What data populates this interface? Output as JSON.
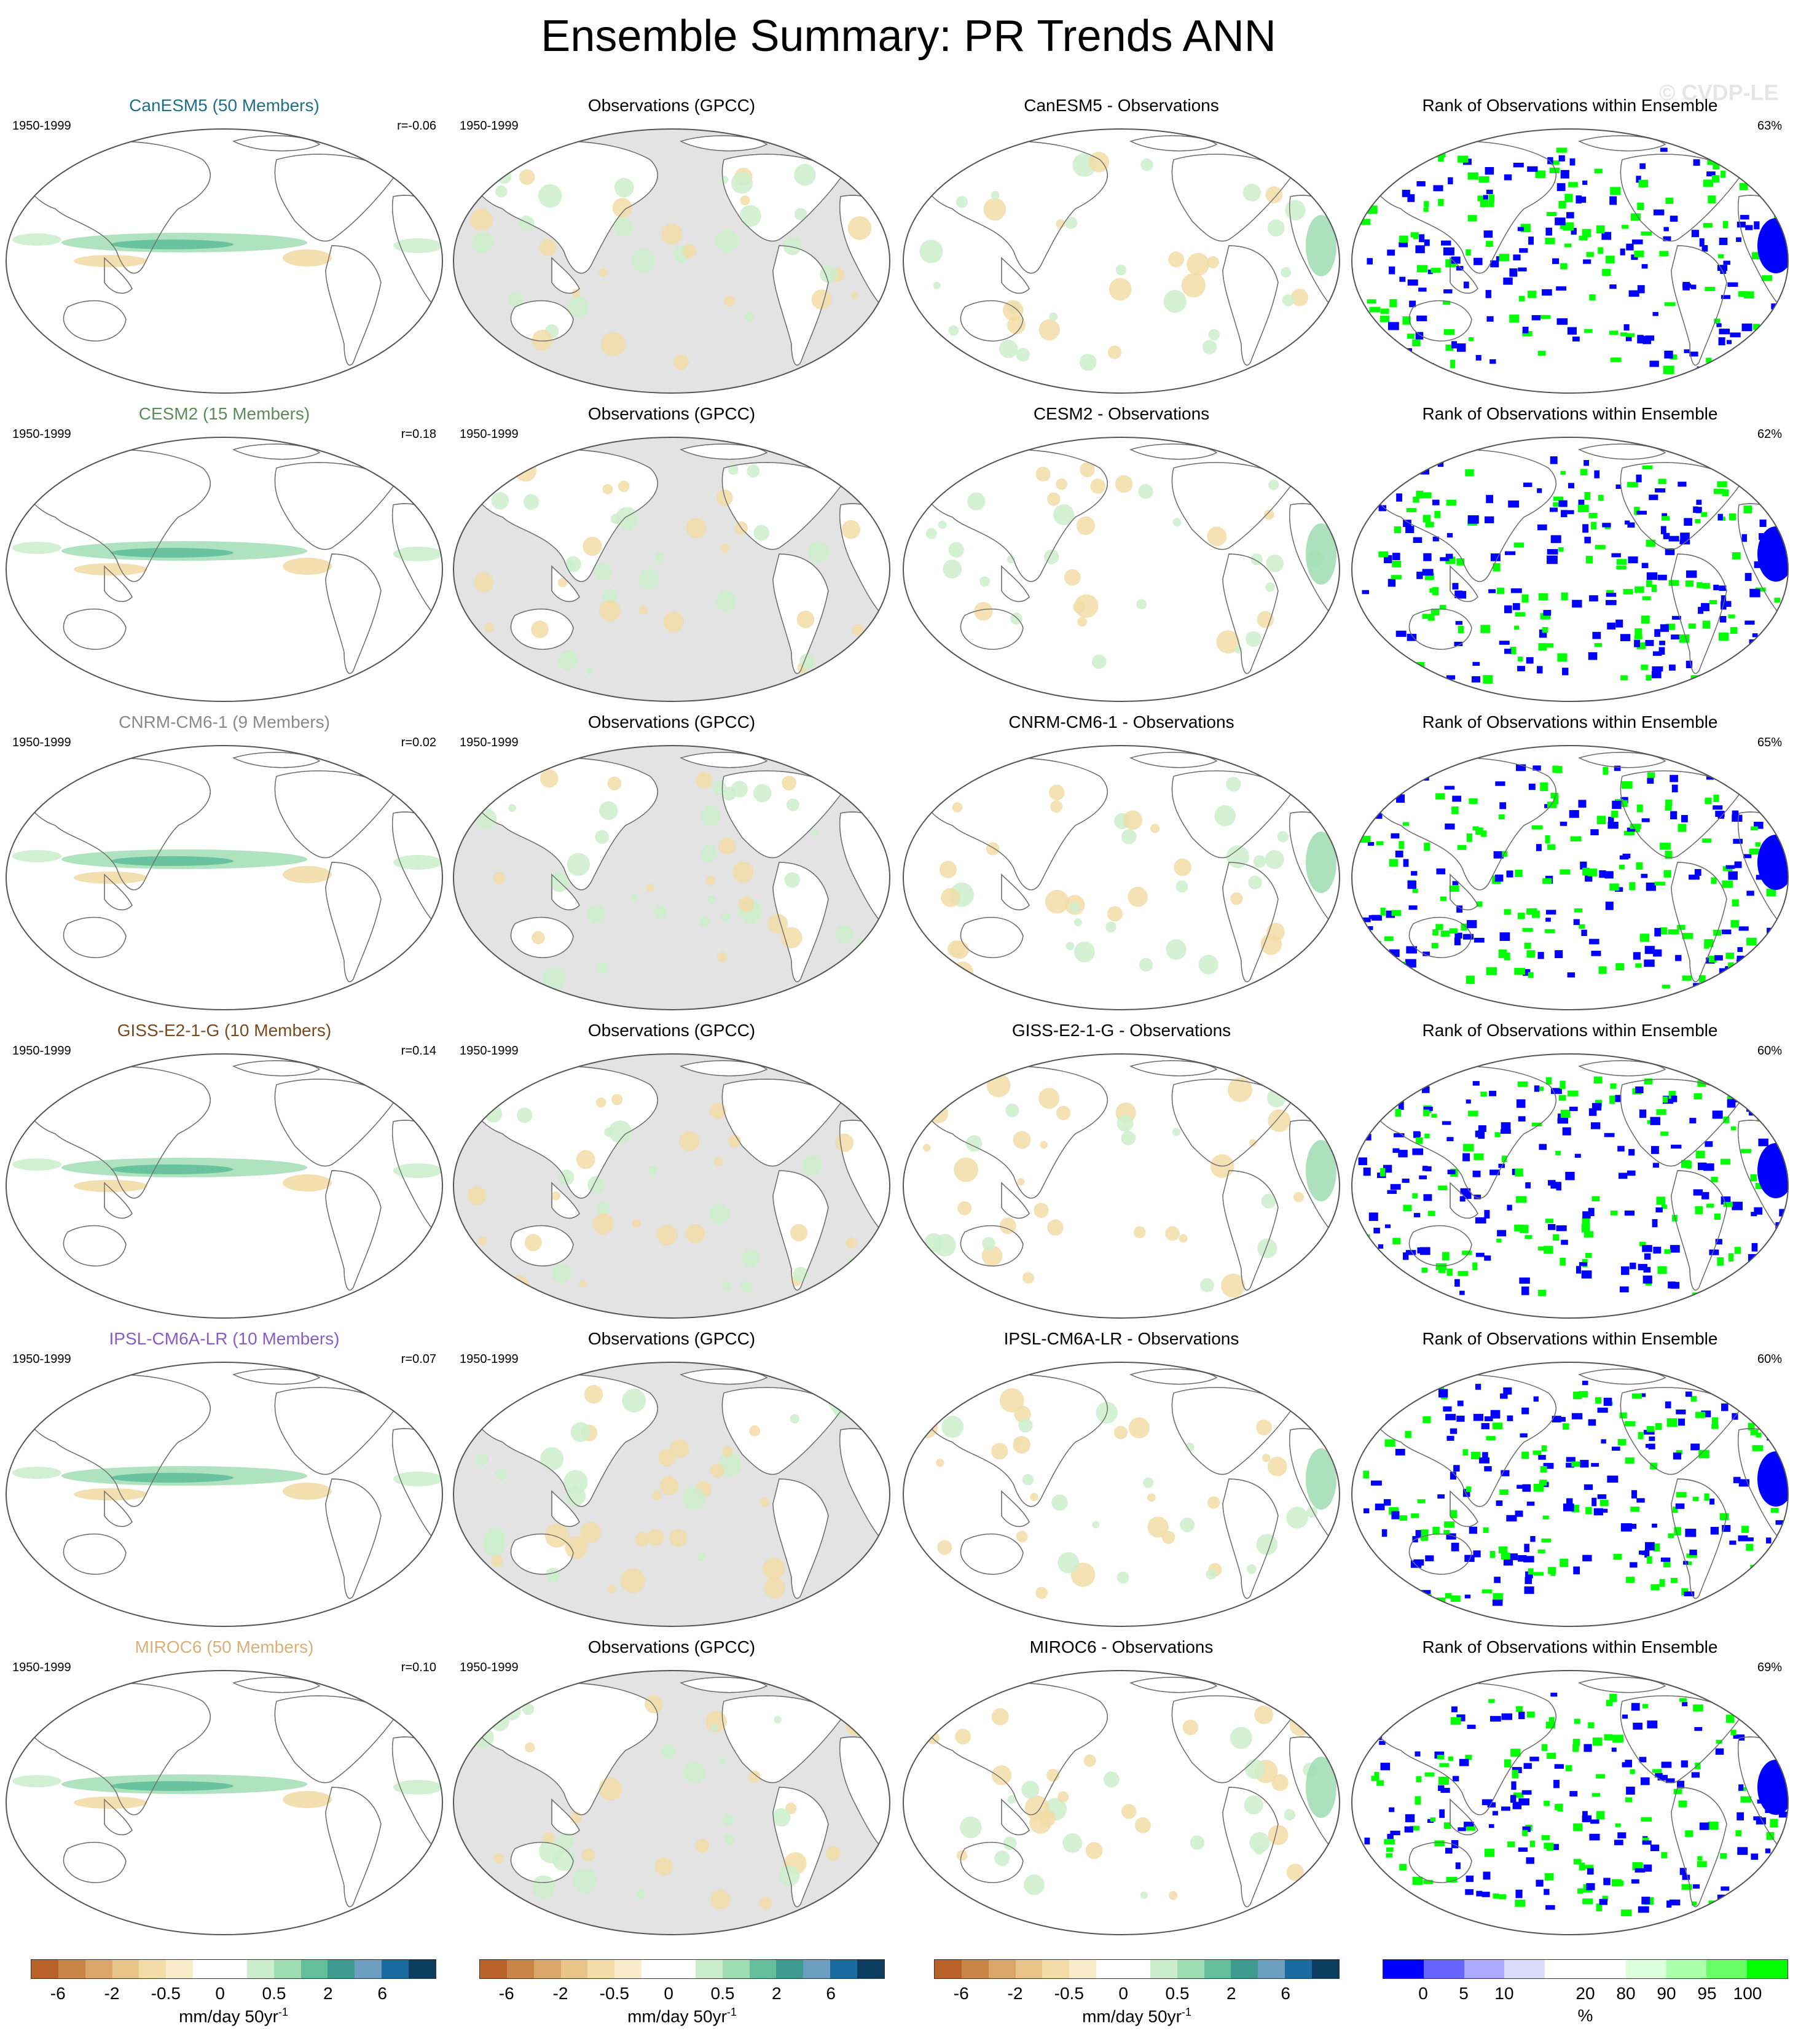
{
  "title": "Ensemble Summary: PR Trends ANN",
  "watermark": "© CVDP-LE",
  "rows": [
    {
      "model_title": "CanESM5 (50 Members)",
      "model_color": "#1f6f8b",
      "period": "1950-1999",
      "r": "r=-0.06",
      "obs_title": "Observations (GPCC)",
      "obs_period": "1950-1999",
      "diff_title": "CanESM5 - Observations",
      "rank_title": "Rank of Observations within Ensemble",
      "rank_pct": "63%"
    },
    {
      "model_title": "CESM2 (15 Members)",
      "model_color": "#5e8a5e",
      "period": "1950-1999",
      "r": "r=0.18",
      "obs_title": "Observations (GPCC)",
      "obs_period": "1950-1999",
      "diff_title": "CESM2 - Observations",
      "rank_title": "Rank of Observations within Ensemble",
      "rank_pct": "62%"
    },
    {
      "model_title": "CNRM-CM6-1 (9 Members)",
      "model_color": "#8a8a8a",
      "period": "1950-1999",
      "r": "r=0.02",
      "obs_title": "Observations (GPCC)",
      "obs_period": "1950-1999",
      "diff_title": "CNRM-CM6-1 - Observations",
      "rank_title": "Rank of Observations within Ensemble",
      "rank_pct": "65%"
    },
    {
      "model_title": "GISS-E2-1-G (10 Members)",
      "model_color": "#7a4a1e",
      "period": "1950-1999",
      "r": "r=0.14",
      "obs_title": "Observations (GPCC)",
      "obs_period": "1950-1999",
      "diff_title": "GISS-E2-1-G - Observations",
      "rank_title": "Rank of Observations within Ensemble",
      "rank_pct": "60%"
    },
    {
      "model_title": "IPSL-CM6A-LR (10 Members)",
      "model_color": "#8a5cc7",
      "period": "1950-1999",
      "r": "r=0.07",
      "obs_title": "Observations (GPCC)",
      "obs_period": "1950-1999",
      "diff_title": "IPSL-CM6A-LR - Observations",
      "rank_title": "Rank of Observations within Ensemble",
      "rank_pct": "60%"
    },
    {
      "model_title": "MIROC6 (50 Members)",
      "model_color": "#d9b07a",
      "period": "1950-1999",
      "r": "r=0.10",
      "obs_title": "Observations (GPCC)",
      "obs_period": "1950-1999",
      "diff_title": "MIROC6 - Observations",
      "rank_title": "Rank of Observations within Ensemble",
      "rank_pct": "69%"
    }
  ],
  "colorbars": [
    {
      "ticks": [
        "-6",
        "-2",
        "-0.5",
        "0",
        "0.5",
        "2",
        "6"
      ],
      "units": "mm/day 50yr",
      "units_sup": "-1",
      "colors": [
        "#b8622a",
        "#c98448",
        "#dba66a",
        "#e9c48a",
        "#f2dca7",
        "#f8edc8",
        "#ffffff",
        "#ffffff",
        "#cdeecd",
        "#9fdcb1",
        "#63bf9b",
        "#3e9a8f",
        "#6f9fc0",
        "#1c6ba0",
        "#0c3d5e"
      ]
    },
    {
      "ticks": [
        "-6",
        "-2",
        "-0.5",
        "0",
        "0.5",
        "2",
        "6"
      ],
      "units": "mm/day 50yr",
      "units_sup": "-1",
      "colors": [
        "#b8622a",
        "#c98448",
        "#dba66a",
        "#e9c48a",
        "#f2dca7",
        "#f8edc8",
        "#ffffff",
        "#ffffff",
        "#cdeecd",
        "#9fdcb1",
        "#63bf9b",
        "#3e9a8f",
        "#6f9fc0",
        "#1c6ba0",
        "#0c3d5e"
      ]
    },
    {
      "ticks": [
        "-6",
        "-2",
        "-0.5",
        "0",
        "0.5",
        "2",
        "6"
      ],
      "units": "mm/day 50yr",
      "units_sup": "-1",
      "colors": [
        "#b8622a",
        "#c98448",
        "#dba66a",
        "#e9c48a",
        "#f2dca7",
        "#f8edc8",
        "#ffffff",
        "#ffffff",
        "#cdeecd",
        "#9fdcb1",
        "#63bf9b",
        "#3e9a8f",
        "#6f9fc0",
        "#1c6ba0",
        "#0c3d5e"
      ]
    },
    {
      "ticks": [
        "0",
        "5",
        "10",
        "20",
        "80",
        "90",
        "95",
        "100"
      ],
      "units": "%",
      "units_sup": "",
      "colors": [
        "#0000ff",
        "#6666ff",
        "#aaaaff",
        "#dcdcff",
        "#ffffff",
        "#ffffff",
        "#dcffdc",
        "#aaffaa",
        "#66ff66",
        "#00ff00"
      ]
    }
  ]
}
